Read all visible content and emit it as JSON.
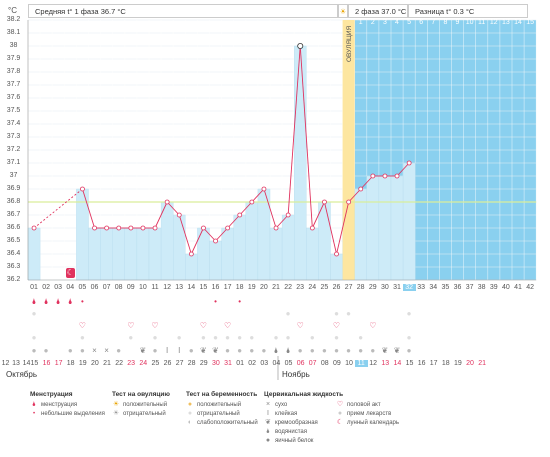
{
  "header": {
    "unit": "°C",
    "phase1": "Средняя t° 1 фаза 36.7 °C",
    "phase2": "2 фаза 37.0 °C",
    "diff": "Разница t° 0.3 °C",
    "sun_icon": "sun-icon"
  },
  "ovulation_label": "ОВУЛЯЦИЯ",
  "chart_data": {
    "type": "line",
    "x": [
      "01",
      "02",
      "03",
      "04",
      "05",
      "06",
      "07",
      "08",
      "09",
      "10",
      "11",
      "12",
      "13",
      "14",
      "15",
      "16",
      "17",
      "18",
      "19",
      "20",
      "21",
      "22",
      "23",
      "24",
      "25",
      "26",
      "27",
      "28",
      "29",
      "30",
      "31",
      "32",
      "33",
      "34",
      "35",
      "36",
      "37",
      "38",
      "39",
      "40",
      "41",
      "42"
    ],
    "y": [
      36.6,
      null,
      null,
      null,
      36.9,
      36.6,
      36.6,
      36.6,
      36.6,
      36.6,
      36.6,
      36.8,
      36.7,
      36.4,
      36.6,
      36.5,
      36.6,
      36.7,
      36.8,
      36.9,
      36.6,
      36.7,
      38.0,
      36.6,
      36.8,
      36.4,
      36.8,
      36.9,
      37.0,
      37.0,
      37.0,
      37.1,
      null,
      null,
      null,
      null,
      null,
      null,
      null,
      null,
      null,
      null
    ],
    "ylim": [
      36.2,
      38.2
    ],
    "yticks": [
      "38.2",
      "38.1",
      "38",
      "37.9",
      "37.8",
      "37.7",
      "37.6",
      "37.5",
      "37.4",
      "37.3",
      "37.2",
      "37.1",
      "37",
      "36.9",
      "36.8",
      "36.7",
      "36.6",
      "36.5",
      "36.4",
      "36.3",
      "36.2"
    ],
    "coverline": 36.8,
    "ovulation_day": 27,
    "current_day": 32,
    "phase2_day_labels": [
      "1",
      "2",
      "3",
      "4",
      "5",
      "6",
      "7",
      "8",
      "9",
      "10",
      "11",
      "12",
      "13",
      "14",
      "15"
    ],
    "colors": {
      "bar": "#cdebf8",
      "phase2": "#8ad0ef",
      "line": "#e0325e",
      "ovulation": "#fde6a0",
      "coverline": "#d9ee9a"
    }
  },
  "dates": {
    "days": [
      "15",
      "16",
      "17",
      "18",
      "19",
      "20",
      "21",
      "22",
      "23",
      "24",
      "25",
      "26",
      "27",
      "28",
      "29",
      "30",
      "31",
      "01",
      "02",
      "03",
      "04",
      "05",
      "06",
      "07",
      "08",
      "09",
      "10",
      "11",
      "12",
      "13",
      "14",
      "15",
      "16",
      "17",
      "18",
      "19",
      "20",
      "21"
    ],
    "row_start": [
      "12",
      "13",
      "14"
    ],
    "month1": "Октябрь",
    "month2": "Ноябрь"
  },
  "legend": {
    "menstruation": {
      "title": "Менструация",
      "items": [
        "менструация",
        "небольшие выделения"
      ]
    },
    "ovulation_test": {
      "title": "Тест на овуляцию",
      "items": [
        "положительный",
        "отрицательный"
      ]
    },
    "pregnancy_test": {
      "title": "Тест на беременность",
      "items": [
        "положительный",
        "отрицательный",
        "слабоположительный"
      ]
    },
    "cervical": {
      "title": "Цервикальная жидкость",
      "items": [
        "сухо",
        "клейкая",
        "кремообразная",
        "водянистая",
        "яичный белок"
      ]
    },
    "other": {
      "items": [
        "половой акт",
        "прием лекарств",
        "лунный календарь"
      ]
    }
  }
}
